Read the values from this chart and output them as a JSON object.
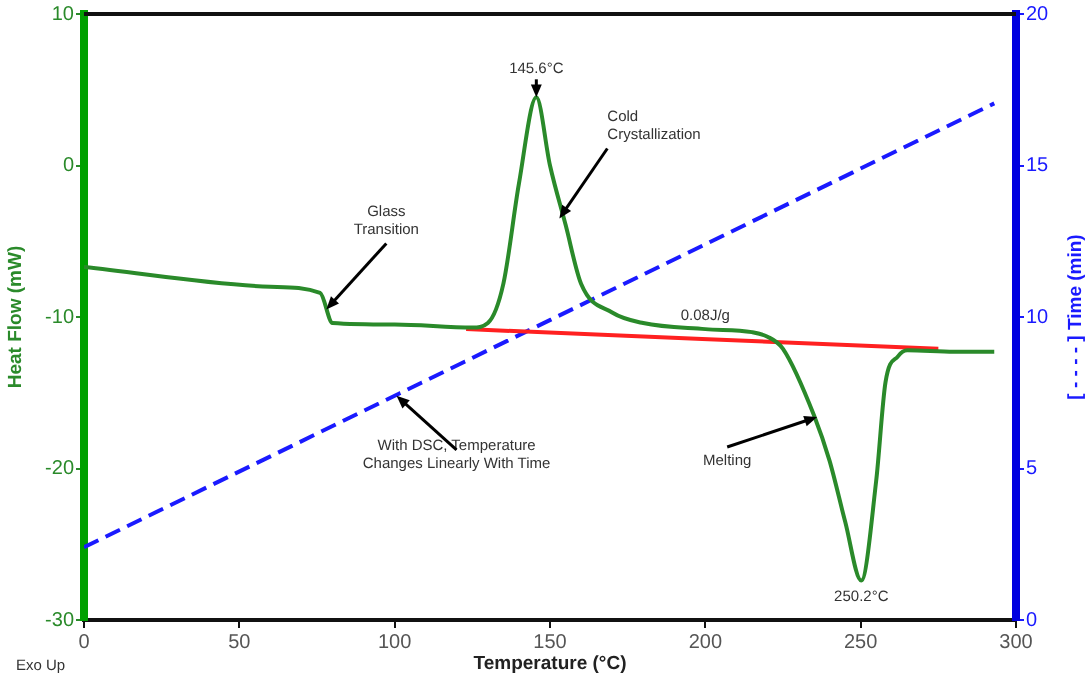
{
  "chart_data": {
    "type": "line",
    "xlabel": "Temperature (°C)",
    "ylabel": "Heat Flow (mW)",
    "y2label": "[ - - - - ] Time (min)",
    "xlim": [
      0,
      300
    ],
    "xticks": [
      0,
      50,
      100,
      150,
      200,
      250,
      300
    ],
    "ylim": [
      -30,
      10
    ],
    "yticks": [
      -30,
      -20,
      -10,
      0,
      10
    ],
    "y2lim": [
      0,
      20
    ],
    "y2ticks": [
      0,
      5,
      10,
      15,
      20
    ],
    "grid": false,
    "legend": false,
    "marker": "none",
    "series": [
      {
        "color": "#2a8a2a",
        "line_style": "solid",
        "axis": "y",
        "x": [
          0,
          60,
          76,
          80,
          100,
          125,
          130,
          135,
          140,
          145.6,
          150,
          155,
          160,
          170,
          180,
          200,
          215,
          220,
          225,
          235,
          240,
          245,
          250.2,
          255,
          258,
          262,
          265,
          280,
          293
        ],
        "values": [
          -6.7,
          -8.0,
          -8.4,
          -10.4,
          -10.5,
          -10.7,
          -10.4,
          -7.8,
          -1.2,
          4.5,
          0,
          -3.9,
          -7.8,
          -9.7,
          -10.4,
          -10.8,
          -11.0,
          -11.3,
          -12.1,
          -16.5,
          -19.5,
          -23.5,
          -27.4,
          -20.8,
          -14.3,
          -12.6,
          -12.2,
          -12.3,
          -12.3
        ]
      },
      {
        "color": "#ff2020",
        "line_style": "solid",
        "axis": "y",
        "x": [
          123,
          275
        ],
        "values": [
          -10.8,
          -12.1
        ]
      },
      {
        "color": "#1a1aff",
        "line_style": "dashed",
        "axis": "y2",
        "x": [
          0,
          293
        ],
        "values": [
          2.4,
          17.05
        ]
      }
    ],
    "annotations": [
      {
        "text": "Glass\nTransition",
        "x": 78,
        "y": -9.5
      },
      {
        "text": "145.6°C",
        "x": 145.6,
        "y": 4.5
      },
      {
        "text": "Cold\nCrystallization",
        "x": 153,
        "y": -3.5
      },
      {
        "text": "0.08J/g",
        "x": 200,
        "y": -11.5
      },
      {
        "text": "Melting",
        "x": 236,
        "y": -16.6
      },
      {
        "text": "250.2°C",
        "x": 250.2,
        "y": -27.4
      },
      {
        "text": "With DSC, Temperature\nChanges Linearly With Time",
        "x": 100.6,
        "y": -15.2
      },
      "Exo Up"
    ]
  }
}
